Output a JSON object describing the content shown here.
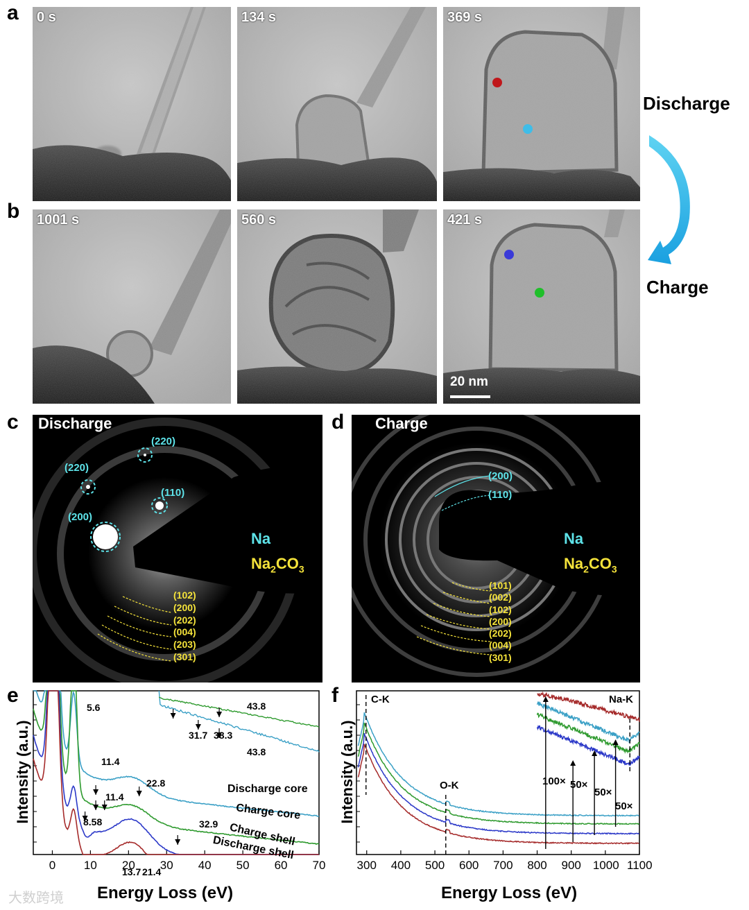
{
  "panel_labels": {
    "a": "a",
    "b": "b",
    "c": "c",
    "d": "d",
    "e": "e",
    "f": "f"
  },
  "tem": {
    "row_a_times": [
      "0 s",
      "134 s",
      "369 s"
    ],
    "row_b_times": [
      "1001 s",
      "560 s",
      "421 s"
    ],
    "scale_bar": "20 nm",
    "discharge_label": "Discharge",
    "charge_label": "Charge",
    "marker_colors": {
      "red": "#c0171b",
      "cyan": "#3fbde8",
      "blue": "#3a3ad8",
      "green": "#1fbf2a"
    }
  },
  "diffraction": {
    "c_title": "Discharge",
    "d_title": "Charge",
    "na_label": "Na",
    "na2co3_label": "Na",
    "na2co3_sub1": "2",
    "na2co3_mid": "CO",
    "na2co3_sub2": "3",
    "c_na_spots": [
      "(220)",
      "(220)",
      "(110)",
      "(200)"
    ],
    "c_na2co3_rings": [
      "(102)",
      "(200)",
      "(202)",
      "(004)",
      "(203)",
      "(301)"
    ],
    "d_na_rings": [
      "(200)",
      "(110)"
    ],
    "d_na2co3_rings": [
      "(101)",
      "(002)",
      "(102)",
      "(200)",
      "(202)",
      "(004)",
      "(301)"
    ],
    "na_color": "#5ee3e9",
    "na2co3_color": "#f5e33a"
  },
  "chart_data": [
    {
      "type": "line",
      "panel": "e",
      "xlabel": "Energy Loss (eV)",
      "ylabel": "Intensity (a.u.)",
      "xlim": [
        -5,
        70
      ],
      "xticks": [
        0,
        10,
        20,
        30,
        40,
        50,
        60,
        70
      ],
      "series": [
        {
          "name": "Discharge core",
          "color": "#3ba0c6"
        },
        {
          "name": "Charge core",
          "color": "#2e9a2e"
        },
        {
          "name": "Charge shell",
          "color": "#2b38c8"
        },
        {
          "name": "Discharge shell",
          "color": "#a52a2a"
        }
      ],
      "annotations": [
        "5.6",
        "11.4",
        "22.8",
        "11.4",
        "8.58",
        "13.7",
        "21.4",
        "32.9",
        "31.7",
        "38.3",
        "43.8",
        "43.8"
      ]
    },
    {
      "type": "line",
      "panel": "f",
      "xlabel": "Energy Loss (eV)",
      "ylabel": "Intensity (a.u.)",
      "xlim": [
        270,
        1100
      ],
      "xticks": [
        300,
        400,
        500,
        600,
        700,
        800,
        900,
        1000,
        1100
      ],
      "edges": [
        "C-K",
        "O-K",
        "Na-K"
      ],
      "magnifications": [
        "100×",
        "50×",
        "50×",
        "50×"
      ],
      "series": [
        {
          "name": "",
          "color": "#3ba0c6"
        },
        {
          "name": "",
          "color": "#2e9a2e"
        },
        {
          "name": "",
          "color": "#2b38c8"
        },
        {
          "name": "",
          "color": "#a52a2a"
        }
      ]
    }
  ],
  "watermark": "大数跨境"
}
